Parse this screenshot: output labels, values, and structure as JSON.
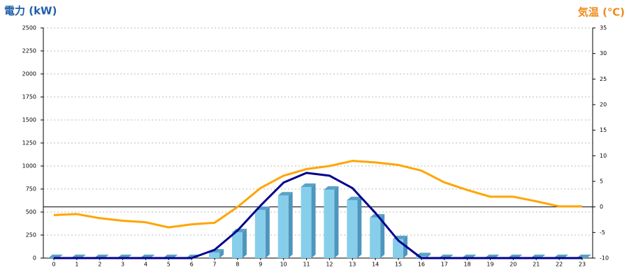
{
  "chart_data": {
    "type": "bar",
    "y_label": "電力 (kW)",
    "y2_label": "気温 (℃)",
    "categories": [
      "0",
      "1",
      "2",
      "3",
      "4",
      "5",
      "6",
      "7",
      "8",
      "9",
      "10",
      "11",
      "12",
      "13",
      "14",
      "15",
      "16",
      "17",
      "18",
      "19",
      "20",
      "21",
      "22",
      "23"
    ],
    "ylim": [
      0,
      2500
    ],
    "yticks": [
      0,
      250,
      500,
      750,
      1000,
      1250,
      1500,
      1750,
      2000,
      2250,
      2500
    ],
    "y2lim": [
      -10,
      35
    ],
    "y2ticks": [
      -10,
      -5,
      0,
      5,
      10,
      15,
      20,
      25,
      30,
      35
    ],
    "grid": true,
    "series": [
      {
        "type": "bar",
        "color": "#87ceeb",
        "values": [
          0,
          0,
          0,
          0,
          0,
          0,
          0,
          60,
          280,
          523,
          680,
          773,
          742,
          629,
          440,
          205,
          20,
          0,
          0,
          0,
          0,
          0,
          0,
          0
        ]
      },
      {
        "type": "line",
        "color": "#00008b",
        "values": [
          0,
          0,
          0,
          0,
          0,
          0,
          0,
          90,
          300,
          570,
          820,
          925,
          895,
          760,
          490,
          190,
          0,
          0,
          0,
          0,
          0,
          0,
          0,
          0
        ]
      },
      {
        "type": "line",
        "axis": "y2",
        "color": "#ffa500",
        "values": [
          -1.6,
          -1.4,
          -2.2,
          -2.7,
          -3.0,
          -4.0,
          -3.4,
          -3.1,
          0.0,
          3.7,
          6.1,
          7.4,
          8.0,
          9.0,
          8.7,
          8.2,
          7.1,
          4.8,
          3.3,
          2.0,
          2.0,
          1.1,
          0.1,
          0.1
        ]
      }
    ]
  }
}
